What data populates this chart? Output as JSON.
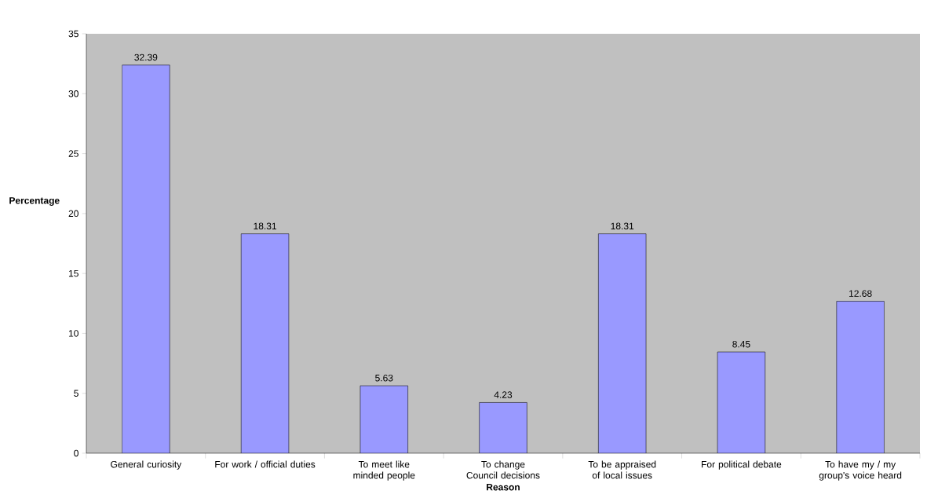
{
  "chart_data": {
    "type": "bar",
    "xlabel": "Reason",
    "ylabel": "Percentage",
    "categories": [
      "General curiosity",
      "For work / official duties",
      "To meet like minded people",
      "To change Council decisions",
      "To be appraised of local issues",
      "For political debate",
      "To have my / my group's voice heard"
    ],
    "values": [
      32.39,
      18.31,
      5.63,
      4.23,
      18.31,
      8.45,
      12.68
    ],
    "color": "#9999ff",
    "data_labels": true,
    "grid": false,
    "ylim": [
      0,
      35
    ],
    "yticks": [
      0,
      5,
      10,
      15,
      20,
      25,
      30,
      35
    ]
  }
}
